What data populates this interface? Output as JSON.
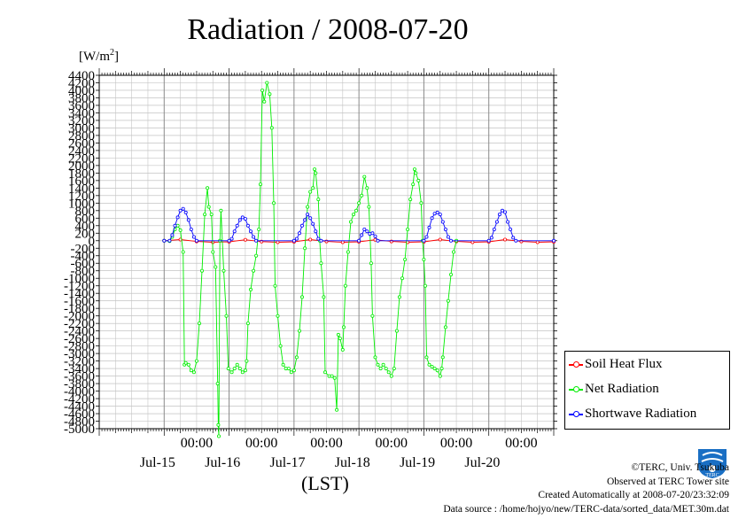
{
  "page": {
    "title": "Radiation / 2008-07-20",
    "y_unit": "[W/m",
    "y_unit_sup": "2",
    "y_unit_end": "]",
    "x_unit": "(LST)"
  },
  "credits": {
    "line1": "©TERC, Univ. Tsukuba",
    "line2": "Observed at TERC Tower site",
    "line3": "Created Automatically at 2008-07-20/23:32:09",
    "line4": "Data source : /home/hojyo/new/TERC-data/sorted_data/MET.30m.dat"
  },
  "logo": {
    "text": "TERC",
    "icon": "terc-logo-icon",
    "color": "#1a6fc4"
  },
  "chart_data": {
    "type": "line",
    "xlabel": "(LST)",
    "ylabel": "[W/m2]",
    "ylim": [
      -5000,
      4400
    ],
    "y_ticks": [
      4400,
      4200,
      4000,
      3800,
      3600,
      3400,
      3200,
      3000,
      2800,
      2600,
      2400,
      2200,
      2000,
      1800,
      1600,
      1400,
      1200,
      1000,
      800,
      600,
      400,
      200,
      0,
      -200,
      -400,
      -600,
      -800,
      -1000,
      -1200,
      -1400,
      -1600,
      -1800,
      -2000,
      -2200,
      -2400,
      -2600,
      -2800,
      -3000,
      -3200,
      -3400,
      -3600,
      -3800,
      -4000,
      -4200,
      -4400,
      -4600,
      -4800,
      -5000
    ],
    "x_unit": "hours since 2008-07-14 00:00 LST",
    "xlim": [
      0,
      168
    ],
    "x_tick_labels": [
      {
        "x": 36,
        "time": "00:00",
        "day": "Jul-15"
      },
      {
        "x": 60,
        "time": "00:00",
        "day": "Jul-16"
      },
      {
        "x": 84,
        "time": "00:00",
        "day": "Jul-17"
      },
      {
        "x": 108,
        "time": "00:00",
        "day": "Jul-18"
      },
      {
        "x": 132,
        "time": "00:00",
        "day": "Jul-19"
      },
      {
        "x": 156,
        "time": "00:00",
        "day": "Jul-20"
      }
    ],
    "grid": true,
    "legend_position": "right-bottom",
    "series": [
      {
        "name": "Soil Heat Flux",
        "color": "#ff0000",
        "points": [
          [
            24,
            0
          ],
          [
            30,
            30
          ],
          [
            36,
            -20
          ],
          [
            42,
            -40
          ],
          [
            48,
            -30
          ],
          [
            54,
            25
          ],
          [
            60,
            -25
          ],
          [
            66,
            -40
          ],
          [
            72,
            -30
          ],
          [
            78,
            30
          ],
          [
            84,
            -20
          ],
          [
            90,
            -40
          ],
          [
            96,
            -30
          ],
          [
            102,
            25
          ],
          [
            108,
            -20
          ],
          [
            114,
            -40
          ],
          [
            120,
            -30
          ],
          [
            126,
            30
          ],
          [
            132,
            -20
          ],
          [
            138,
            -40
          ],
          [
            144,
            -30
          ],
          [
            150,
            30
          ],
          [
            156,
            -20
          ],
          [
            162,
            -40
          ],
          [
            168,
            -30
          ]
        ]
      },
      {
        "name": "Net Radiation",
        "color": "#00ee00",
        "points": [
          [
            24,
            0
          ],
          [
            26,
            -10
          ],
          [
            27,
            100
          ],
          [
            28,
            300
          ],
          [
            29,
            400
          ],
          [
            30,
            280
          ],
          [
            31,
            -300
          ],
          [
            31.5,
            -3300
          ],
          [
            32,
            -3250
          ],
          [
            33,
            -3300
          ],
          [
            34,
            -3450
          ],
          [
            35,
            -3500
          ],
          [
            36,
            -3200
          ],
          [
            37,
            -2200
          ],
          [
            38,
            -800
          ],
          [
            39,
            700
          ],
          [
            40,
            1400
          ],
          [
            40.5,
            900
          ],
          [
            41.5,
            700
          ],
          [
            42,
            -300
          ],
          [
            43,
            -700
          ],
          [
            43.8,
            -3800
          ],
          [
            44,
            -4900
          ],
          [
            44.2,
            -5200
          ],
          [
            44.6,
            0
          ],
          [
            45,
            800
          ],
          [
            46,
            -800
          ],
          [
            47,
            -2000
          ],
          [
            47.7,
            -3400
          ],
          [
            49,
            -3500
          ],
          [
            50,
            -3400
          ],
          [
            51,
            -3300
          ],
          [
            52,
            -3400
          ],
          [
            53,
            -3500
          ],
          [
            54,
            -3450
          ],
          [
            54.5,
            -3200
          ],
          [
            55,
            -2200
          ],
          [
            56,
            -1300
          ],
          [
            57,
            -800
          ],
          [
            58,
            -400
          ],
          [
            59,
            300
          ],
          [
            59.6,
            1500
          ],
          [
            60.3,
            4000
          ],
          [
            61,
            3700
          ],
          [
            62,
            4200
          ],
          [
            63,
            3900
          ],
          [
            63.8,
            3000
          ],
          [
            64.5,
            1000
          ],
          [
            65,
            -1200
          ],
          [
            66,
            -2000
          ],
          [
            67,
            -2800
          ],
          [
            68,
            -3300
          ],
          [
            69,
            -3400
          ],
          [
            70,
            -3400
          ],
          [
            71,
            -3500
          ],
          [
            72,
            -3450
          ],
          [
            73,
            -3100
          ],
          [
            74,
            -2400
          ],
          [
            75,
            -1500
          ],
          [
            76,
            -200
          ],
          [
            77,
            900
          ],
          [
            78,
            1300
          ],
          [
            79,
            1400
          ],
          [
            79.6,
            1900
          ],
          [
            80,
            1800
          ],
          [
            81,
            1100
          ],
          [
            81.5,
            0
          ],
          [
            82,
            -600
          ],
          [
            83,
            -1500
          ],
          [
            83.5,
            -3500
          ],
          [
            85,
            -3600
          ],
          [
            86,
            -3600
          ],
          [
            87,
            -3650
          ],
          [
            87.8,
            -4500
          ],
          [
            88.4,
            -2500
          ],
          [
            89,
            -2600
          ],
          [
            90,
            -2900
          ],
          [
            90.4,
            -2300
          ],
          [
            91,
            -1200
          ],
          [
            92,
            -300
          ],
          [
            93,
            500
          ],
          [
            94,
            700
          ],
          [
            95,
            800
          ],
          [
            96,
            1000
          ],
          [
            97,
            1200
          ],
          [
            98,
            1700
          ],
          [
            99,
            1400
          ],
          [
            99.7,
            900
          ],
          [
            100.5,
            -600
          ],
          [
            101,
            -2000
          ],
          [
            102,
            -3100
          ],
          [
            103,
            -3300
          ],
          [
            104,
            -3400
          ],
          [
            105,
            -3300
          ],
          [
            106,
            -3400
          ],
          [
            107,
            -3500
          ],
          [
            108,
            -3600
          ],
          [
            109,
            -3400
          ],
          [
            110,
            -2400
          ],
          [
            111,
            -1500
          ],
          [
            112,
            -1000
          ],
          [
            113,
            -500
          ],
          [
            114,
            300
          ],
          [
            115,
            1100
          ],
          [
            116,
            1500
          ],
          [
            116.6,
            1900
          ],
          [
            117,
            1800
          ],
          [
            118,
            1600
          ],
          [
            119,
            1000
          ],
          [
            119.5,
            0
          ],
          [
            120,
            -500
          ],
          [
            120.5,
            -1200
          ],
          [
            121,
            -3100
          ],
          [
            122,
            -3300
          ],
          [
            123,
            -3350
          ],
          [
            124,
            -3400
          ],
          [
            125,
            -3450
          ],
          [
            126,
            -3600
          ],
          [
            126.6,
            -3400
          ],
          [
            127,
            -3100
          ],
          [
            128,
            -2300
          ],
          [
            129,
            -1600
          ],
          [
            130,
            -900
          ],
          [
            131,
            -300
          ],
          [
            132,
            0
          ]
        ]
      },
      {
        "name": "Shortwave Radiation",
        "color": "#0000ff",
        "points": [
          [
            24,
            0
          ],
          [
            26,
            0
          ],
          [
            27,
            150
          ],
          [
            28,
            400
          ],
          [
            29,
            620
          ],
          [
            30,
            800
          ],
          [
            31,
            850
          ],
          [
            32,
            750
          ],
          [
            33,
            550
          ],
          [
            34,
            300
          ],
          [
            35,
            100
          ],
          [
            36,
            0
          ],
          [
            48,
            0
          ],
          [
            49,
            50
          ],
          [
            50,
            250
          ],
          [
            51,
            400
          ],
          [
            52,
            550
          ],
          [
            53,
            620
          ],
          [
            54,
            580
          ],
          [
            55,
            400
          ],
          [
            56,
            250
          ],
          [
            57,
            100
          ],
          [
            58,
            0
          ],
          [
            72,
            0
          ],
          [
            73,
            50
          ],
          [
            74,
            200
          ],
          [
            75,
            400
          ],
          [
            76,
            550
          ],
          [
            77,
            700
          ],
          [
            78,
            600
          ],
          [
            79,
            450
          ],
          [
            80,
            250
          ],
          [
            81,
            50
          ],
          [
            82,
            0
          ],
          [
            96,
            0
          ],
          [
            97,
            150
          ],
          [
            98,
            300
          ],
          [
            99,
            250
          ],
          [
            100,
            180
          ],
          [
            101,
            200
          ],
          [
            102,
            120
          ],
          [
            103,
            0
          ],
          [
            120,
            0
          ],
          [
            121,
            100
          ],
          [
            122,
            350
          ],
          [
            123,
            600
          ],
          [
            124,
            720
          ],
          [
            125,
            750
          ],
          [
            126,
            700
          ],
          [
            127,
            500
          ],
          [
            128,
            300
          ],
          [
            129,
            100
          ],
          [
            130,
            0
          ],
          [
            144,
            0
          ],
          [
            145,
            80
          ],
          [
            146,
            300
          ],
          [
            147,
            500
          ],
          [
            148,
            700
          ],
          [
            149,
            800
          ],
          [
            150,
            760
          ],
          [
            151,
            500
          ],
          [
            152,
            300
          ],
          [
            153,
            80
          ],
          [
            154,
            0
          ],
          [
            168,
            0
          ]
        ]
      }
    ]
  }
}
